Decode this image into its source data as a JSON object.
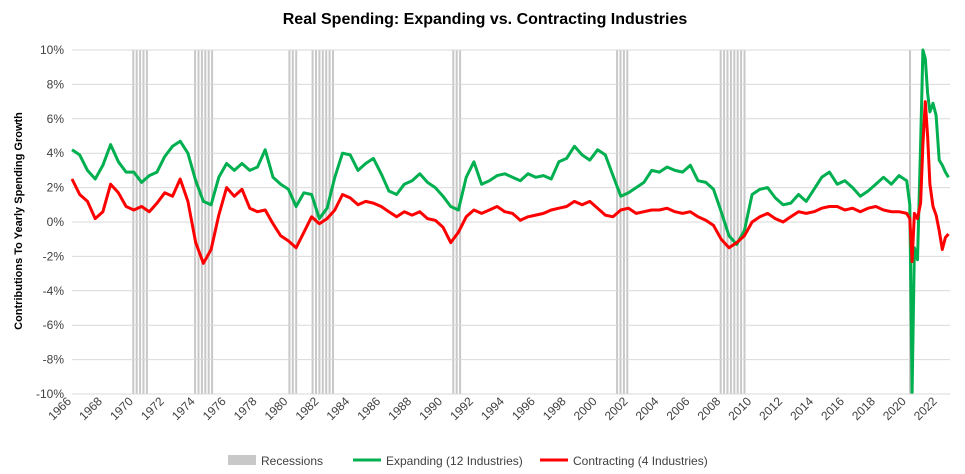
{
  "chart_data": {
    "type": "line",
    "title": "Real Spending: Expanding vs. Contracting Industries",
    "ylabel": "Contributions To Yearly Spending Growth",
    "xlabel": "",
    "xlim": [
      1966,
      2022.8
    ],
    "ylim": [
      -10,
      10
    ],
    "ytick_labels": [
      "10%",
      "8%",
      "6%",
      "4%",
      "2%",
      "0%",
      "-2%",
      "-4%",
      "-6%",
      "-8%",
      "-10%"
    ],
    "ytick_values": [
      10,
      8,
      6,
      4,
      2,
      0,
      -2,
      -4,
      -6,
      -8,
      -10
    ],
    "xtick_labels": [
      "1966",
      "1968",
      "1970",
      "1972",
      "1974",
      "1976",
      "1978",
      "1980",
      "1982",
      "1984",
      "1986",
      "1988",
      "1990",
      "1992",
      "1994",
      "1996",
      "1998",
      "2000",
      "2002",
      "2004",
      "2006",
      "2008",
      "2010",
      "2012",
      "2014",
      "2016",
      "2018",
      "2020",
      "2022"
    ],
    "xtick_values": [
      1966,
      1968,
      1970,
      1972,
      1974,
      1976,
      1978,
      1980,
      1982,
      1984,
      1986,
      1988,
      1990,
      1992,
      1994,
      1996,
      1998,
      2000,
      2002,
      2004,
      2006,
      2008,
      2010,
      2012,
      2014,
      2016,
      2018,
      2020,
      2022
    ],
    "grid": "horizontal",
    "legend_position": "bottom",
    "recessions": {
      "name": "Recessions",
      "color": "#c8c8c8",
      "periods": [
        [
          1969.9,
          1970.9
        ],
        [
          1973.9,
          1975.2
        ],
        [
          1980.0,
          1980.5
        ],
        [
          1981.5,
          1982.9
        ],
        [
          1990.6,
          1991.2
        ],
        [
          2001.2,
          2001.9
        ],
        [
          2007.9,
          2009.5
        ],
        [
          2020.15,
          2020.35
        ]
      ]
    },
    "series": [
      {
        "name": "Expanding (12 Industries)",
        "color": "#00b050",
        "x": [
          1966,
          1966.5,
          1967,
          1967.5,
          1968,
          1968.5,
          1969,
          1969.5,
          1970,
          1970.5,
          1971,
          1971.5,
          1972,
          1972.5,
          1973,
          1973.5,
          1974,
          1974.5,
          1975,
          1975.5,
          1976,
          1976.5,
          1977,
          1977.5,
          1978,
          1978.5,
          1979,
          1979.5,
          1980,
          1980.5,
          1981,
          1981.5,
          1982,
          1982.5,
          1983,
          1983.5,
          1984,
          1984.5,
          1985,
          1985.5,
          1986,
          1986.5,
          1987,
          1987.5,
          1988,
          1988.5,
          1989,
          1989.5,
          1990,
          1990.5,
          1991,
          1991.5,
          1992,
          1992.5,
          1993,
          1993.5,
          1994,
          1994.5,
          1995,
          1995.5,
          1996,
          1996.5,
          1997,
          1997.5,
          1998,
          1998.5,
          1999,
          1999.5,
          2000,
          2000.5,
          2001,
          2001.5,
          2002,
          2002.5,
          2003,
          2003.5,
          2004,
          2004.5,
          2005,
          2005.5,
          2006,
          2006.5,
          2007,
          2007.5,
          2008,
          2008.5,
          2009,
          2009.5,
          2010,
          2010.5,
          2011,
          2011.5,
          2012,
          2012.5,
          2013,
          2013.5,
          2014,
          2014.5,
          2015,
          2015.5,
          2016,
          2016.5,
          2017,
          2017.5,
          2018,
          2018.5,
          2019,
          2019.5,
          2020,
          2020.2,
          2020.35,
          2020.5,
          2020.7,
          2020.9,
          2021.05,
          2021.2,
          2021.35,
          2021.5,
          2021.7,
          2021.9,
          2022.1,
          2022.3,
          2022.5,
          2022.7
        ],
        "y": [
          4.2,
          3.9,
          3.0,
          2.5,
          3.3,
          4.5,
          3.5,
          2.9,
          2.9,
          2.3,
          2.7,
          2.9,
          3.8,
          4.4,
          4.7,
          4.0,
          2.4,
          1.2,
          1.0,
          2.6,
          3.4,
          3.0,
          3.4,
          3.0,
          3.2,
          4.2,
          2.6,
          2.2,
          1.9,
          0.9,
          1.7,
          1.6,
          0.2,
          0.8,
          2.6,
          4.0,
          3.9,
          3.0,
          3.4,
          3.7,
          2.8,
          1.8,
          1.6,
          2.2,
          2.4,
          2.8,
          2.3,
          2.0,
          1.5,
          0.9,
          0.7,
          2.6,
          3.5,
          2.2,
          2.4,
          2.7,
          2.8,
          2.6,
          2.4,
          2.8,
          2.6,
          2.7,
          2.5,
          3.5,
          3.7,
          4.4,
          3.9,
          3.6,
          4.2,
          3.9,
          2.7,
          1.5,
          1.7,
          2.0,
          2.3,
          3.0,
          2.9,
          3.2,
          3.0,
          2.9,
          3.3,
          2.4,
          2.3,
          1.9,
          0.6,
          -0.8,
          -1.3,
          -0.5,
          1.6,
          1.9,
          2.0,
          1.4,
          1.0,
          1.1,
          1.6,
          1.2,
          1.9,
          2.6,
          2.9,
          2.2,
          2.4,
          2.0,
          1.5,
          1.8,
          2.2,
          2.6,
          2.2,
          2.7,
          2.4,
          1.0,
          -9.9,
          -1.5,
          -2.2,
          4.5,
          10.0,
          9.5,
          7.5,
          6.4,
          6.9,
          6.2,
          3.6,
          3.3,
          2.9,
          2.6
        ]
      },
      {
        "name": "Contracting (4 Industries)",
        "color": "#ff0000",
        "x": [
          1966,
          1966.5,
          1967,
          1967.5,
          1968,
          1968.5,
          1969,
          1969.5,
          1970,
          1970.5,
          1971,
          1971.5,
          1972,
          1972.5,
          1973,
          1973.5,
          1974,
          1974.5,
          1975,
          1975.5,
          1976,
          1976.5,
          1977,
          1977.5,
          1978,
          1978.5,
          1979,
          1979.5,
          1980,
          1980.5,
          1981,
          1981.5,
          1982,
          1982.5,
          1983,
          1983.5,
          1984,
          1984.5,
          1985,
          1985.5,
          1986,
          1986.5,
          1987,
          1987.5,
          1988,
          1988.5,
          1989,
          1989.5,
          1990,
          1990.5,
          1991,
          1991.5,
          1992,
          1992.5,
          1993,
          1993.5,
          1994,
          1994.5,
          1995,
          1995.5,
          1996,
          1996.5,
          1997,
          1997.5,
          1998,
          1998.5,
          1999,
          1999.5,
          2000,
          2000.5,
          2001,
          2001.5,
          2002,
          2002.5,
          2003,
          2003.5,
          2004,
          2004.5,
          2005,
          2005.5,
          2006,
          2006.5,
          2007,
          2007.5,
          2008,
          2008.5,
          2009,
          2009.5,
          2010,
          2010.5,
          2011,
          2011.5,
          2012,
          2012.5,
          2013,
          2013.5,
          2014,
          2014.5,
          2015,
          2015.5,
          2016,
          2016.5,
          2017,
          2017.5,
          2018,
          2018.5,
          2019,
          2019.5,
          2020,
          2020.2,
          2020.35,
          2020.5,
          2020.7,
          2020.9,
          2021.05,
          2021.2,
          2021.35,
          2021.5,
          2021.7,
          2021.9,
          2022.1,
          2022.3,
          2022.5,
          2022.7
        ],
        "y": [
          2.5,
          1.6,
          1.2,
          0.2,
          0.6,
          2.2,
          1.7,
          0.9,
          0.7,
          0.9,
          0.6,
          1.1,
          1.7,
          1.5,
          2.5,
          1.2,
          -1.2,
          -2.4,
          -1.6,
          0.4,
          2.0,
          1.5,
          1.9,
          0.8,
          0.6,
          0.7,
          -0.1,
          -0.8,
          -1.1,
          -1.5,
          -0.6,
          0.3,
          -0.1,
          0.2,
          0.7,
          1.6,
          1.4,
          1.0,
          1.2,
          1.1,
          0.9,
          0.6,
          0.3,
          0.6,
          0.4,
          0.6,
          0.2,
          0.1,
          -0.3,
          -1.2,
          -0.6,
          0.3,
          0.7,
          0.5,
          0.7,
          0.9,
          0.6,
          0.5,
          0.1,
          0.3,
          0.4,
          0.5,
          0.7,
          0.8,
          0.9,
          1.2,
          1.0,
          1.2,
          0.8,
          0.4,
          0.3,
          0.7,
          0.8,
          0.5,
          0.6,
          0.7,
          0.7,
          0.8,
          0.6,
          0.5,
          0.6,
          0.3,
          0.1,
          -0.2,
          -1.0,
          -1.5,
          -1.2,
          -0.8,
          0.0,
          0.3,
          0.5,
          0.2,
          0.0,
          0.3,
          0.6,
          0.5,
          0.6,
          0.8,
          0.9,
          0.9,
          0.7,
          0.8,
          0.6,
          0.8,
          0.9,
          0.7,
          0.6,
          0.6,
          0.5,
          0.2,
          -2.3,
          0.5,
          0.2,
          1.1,
          4.5,
          7.0,
          5.0,
          2.2,
          0.9,
          0.4,
          -0.5,
          -1.6,
          -0.9,
          -0.7
        ]
      }
    ]
  }
}
